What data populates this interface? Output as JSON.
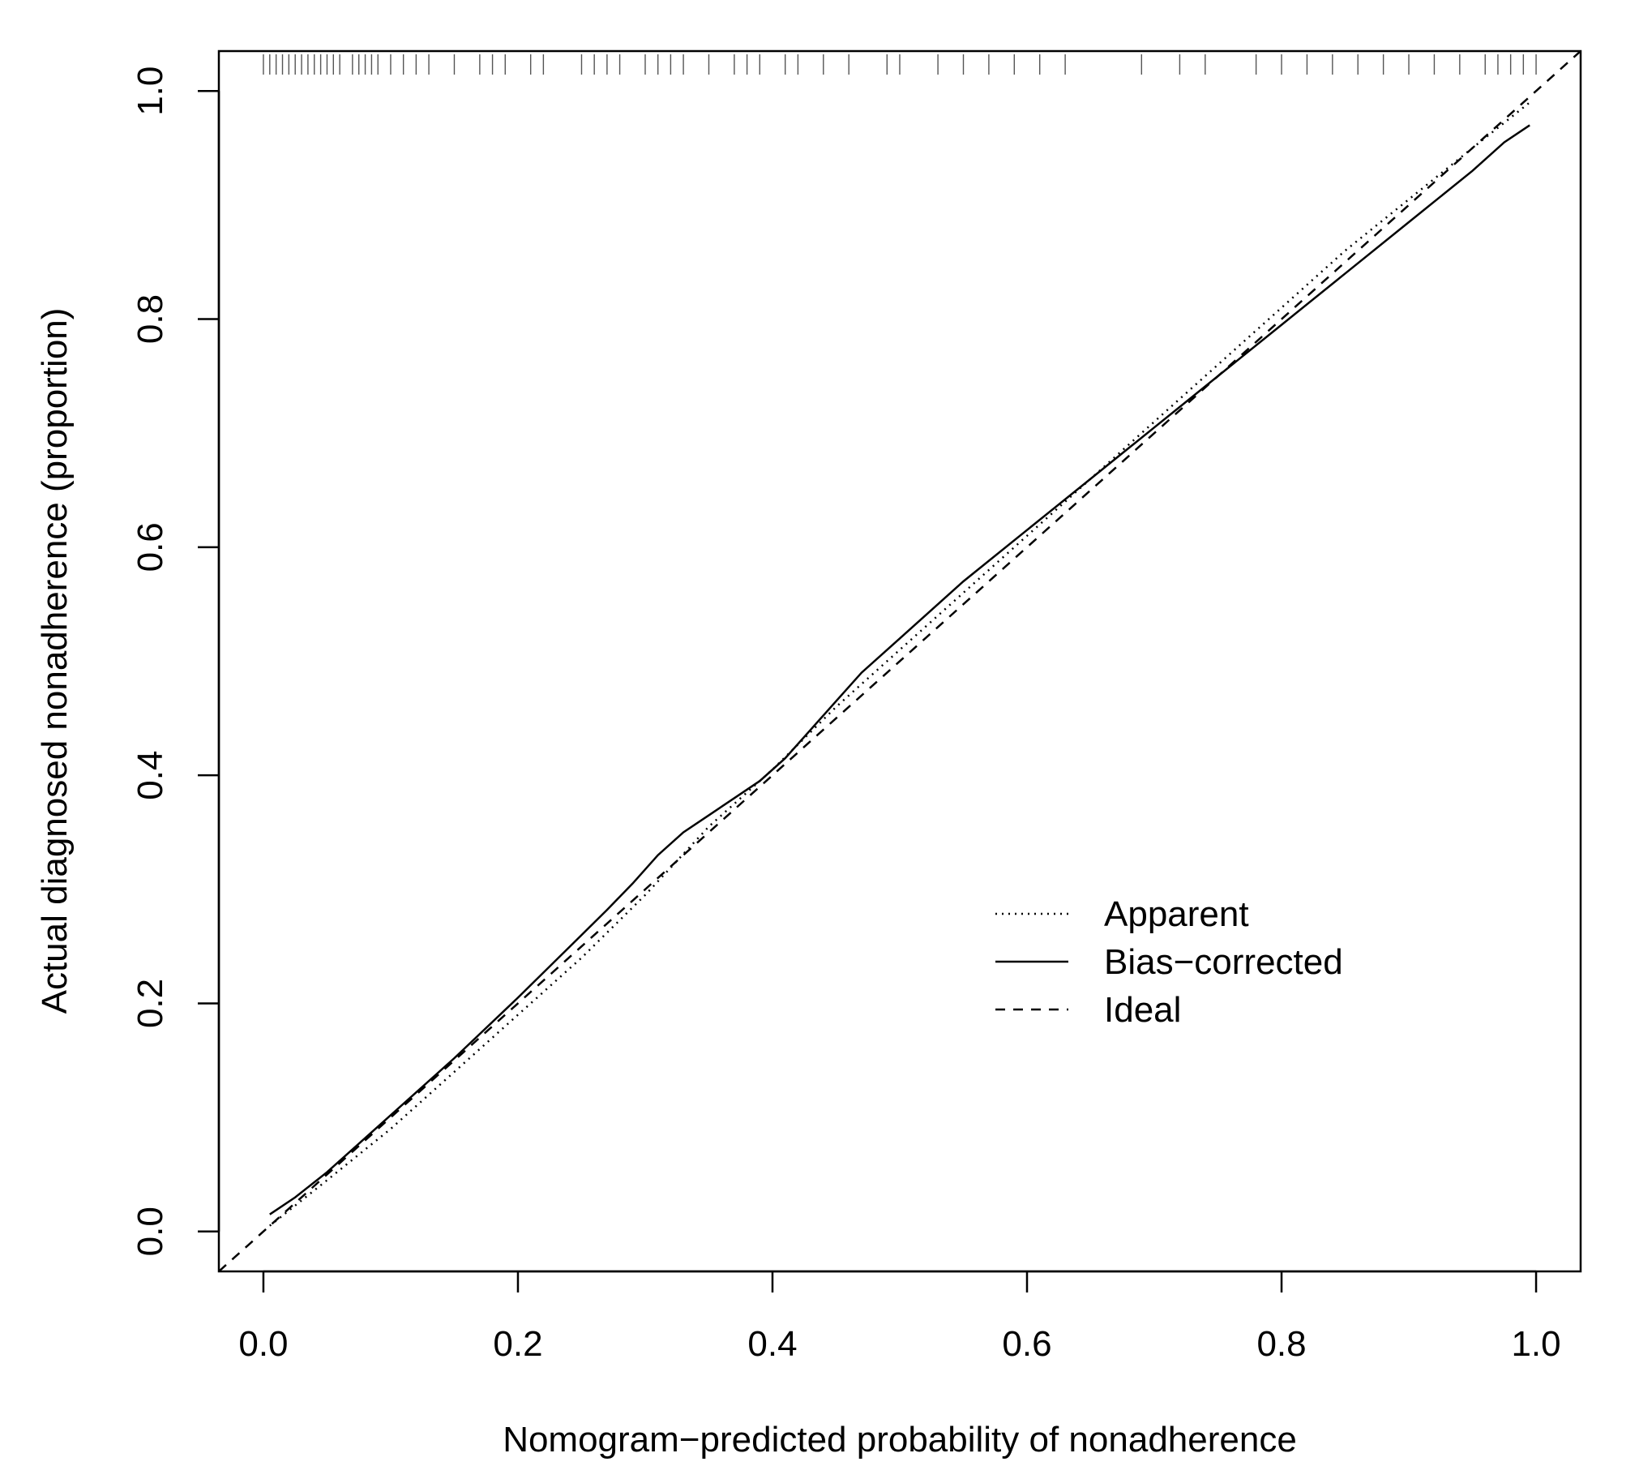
{
  "chart_data": {
    "type": "line",
    "title": "",
    "xlabel": "Nomogram−predicted probability of nonadherence",
    "ylabel": "Actual diagnosed nonadherence (proportion)",
    "xlim": [
      -0.035,
      1.035
    ],
    "ylim": [
      -0.035,
      1.035
    ],
    "xticks": [
      0.0,
      0.2,
      0.4,
      0.6,
      0.8,
      1.0
    ],
    "yticks": [
      0.0,
      0.2,
      0.4,
      0.6,
      0.8,
      1.0
    ],
    "xtick_labels": [
      "0.0",
      "0.2",
      "0.4",
      "0.6",
      "0.8",
      "1.0"
    ],
    "ytick_labels": [
      "0.0",
      "0.2",
      "0.4",
      "0.6",
      "0.8",
      "1.0"
    ],
    "grid": false,
    "legend_position": "center-right",
    "series": [
      {
        "name": "Apparent",
        "linestyle": "dotted",
        "x": [
          0.005,
          0.05,
          0.1,
          0.15,
          0.2,
          0.25,
          0.3,
          0.35,
          0.4,
          0.45,
          0.5,
          0.55,
          0.6,
          0.65,
          0.7,
          0.75,
          0.8,
          0.85,
          0.9,
          0.95,
          0.995
        ],
        "y": [
          0.005,
          0.045,
          0.09,
          0.14,
          0.19,
          0.24,
          0.295,
          0.355,
          0.405,
          0.46,
          0.51,
          0.56,
          0.61,
          0.66,
          0.71,
          0.76,
          0.81,
          0.86,
          0.905,
          0.95,
          0.99
        ]
      },
      {
        "name": "Bias−corrected",
        "linestyle": "solid",
        "x": [
          0.005,
          0.025,
          0.05,
          0.1,
          0.15,
          0.2,
          0.25,
          0.27,
          0.29,
          0.31,
          0.33,
          0.35,
          0.37,
          0.39,
          0.41,
          0.43,
          0.45,
          0.47,
          0.5,
          0.55,
          0.6,
          0.65,
          0.7,
          0.75,
          0.8,
          0.85,
          0.9,
          0.95,
          0.975,
          0.995
        ],
        "y": [
          0.015,
          0.03,
          0.052,
          0.102,
          0.152,
          0.205,
          0.26,
          0.282,
          0.305,
          0.33,
          0.35,
          0.365,
          0.38,
          0.395,
          0.415,
          0.44,
          0.465,
          0.49,
          0.52,
          0.57,
          0.615,
          0.66,
          0.705,
          0.75,
          0.795,
          0.84,
          0.885,
          0.93,
          0.955,
          0.97
        ]
      },
      {
        "name": "Ideal",
        "linestyle": "dashed",
        "x": [
          -0.035,
          1.035
        ],
        "y": [
          -0.035,
          1.035
        ]
      }
    ],
    "rug_x": [
      0.0,
      0.005,
      0.01,
      0.015,
      0.02,
      0.025,
      0.03,
      0.035,
      0.04,
      0.045,
      0.05,
      0.055,
      0.06,
      0.07,
      0.075,
      0.08,
      0.085,
      0.09,
      0.1,
      0.11,
      0.12,
      0.13,
      0.15,
      0.17,
      0.18,
      0.19,
      0.21,
      0.22,
      0.25,
      0.26,
      0.27,
      0.28,
      0.3,
      0.31,
      0.32,
      0.33,
      0.35,
      0.37,
      0.38,
      0.39,
      0.41,
      0.42,
      0.44,
      0.46,
      0.49,
      0.5,
      0.53,
      0.55,
      0.57,
      0.59,
      0.61,
      0.63,
      0.69,
      0.72,
      0.74,
      0.78,
      0.8,
      0.82,
      0.84,
      0.86,
      0.88,
      0.9,
      0.92,
      0.94,
      0.96,
      0.97,
      0.98,
      0.99,
      1.0
    ]
  },
  "legend": {
    "items": [
      {
        "label": "Apparent",
        "linestyle": "dotted"
      },
      {
        "label": "Bias−corrected",
        "linestyle": "solid"
      },
      {
        "label": "Ideal",
        "linestyle": "dashed"
      }
    ]
  },
  "colors": {
    "line": "#000000",
    "rug": "#555555",
    "background": "#ffffff"
  }
}
